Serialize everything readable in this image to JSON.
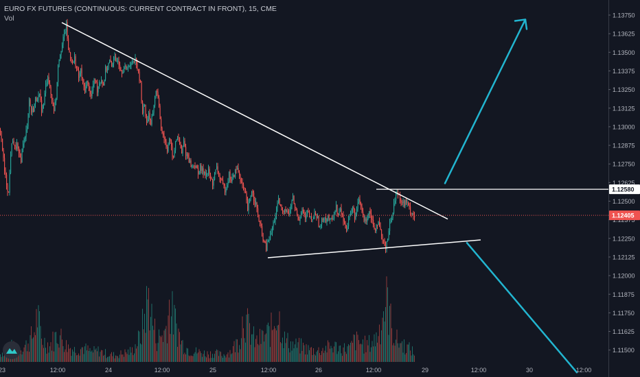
{
  "header": {
    "title": "EURO FX FUTURES (CONTINUOUS: CURRENT CONTRACT IN FRONT), 15, CME",
    "indicator": "Vol"
  },
  "colors": {
    "background": "#131722",
    "up": "#26a69a",
    "down": "#ef5350",
    "trendline": "#ffffff",
    "arrow": "#22b5d0",
    "last_price_line": "#ef5350"
  },
  "chart_data": {
    "type": "candlestick",
    "timeframe": "15",
    "ylim": [
      1.1145,
      1.1382
    ],
    "y_ticks": [
      "1.13750",
      "1.13625",
      "1.13500",
      "1.13375",
      "1.13250",
      "1.13125",
      "1.13000",
      "1.12875",
      "1.12750",
      "1.12625",
      "1.12500",
      "1.12375",
      "1.12250",
      "1.12125",
      "1.12000",
      "1.11875",
      "1.11750",
      "1.11625",
      "1.11500"
    ],
    "x_ticks": [
      "23",
      "12:00",
      "24",
      "12:00",
      "25",
      "12:00",
      "26",
      "12:00",
      "29",
      "12:00",
      "30",
      "12:00"
    ],
    "price_path": [
      [
        0,
        1.1298
      ],
      [
        3,
        1.1285
      ],
      [
        6,
        1.127
      ],
      [
        9,
        1.1262
      ],
      [
        12,
        1.1255
      ],
      [
        15,
        1.1282
      ],
      [
        18,
        1.1292
      ],
      [
        21,
        1.1285
      ],
      [
        24,
        1.1288
      ],
      [
        27,
        1.128
      ],
      [
        30,
        1.1278
      ],
      [
        33,
        1.129
      ],
      [
        36,
        1.1292
      ],
      [
        39,
        1.1302
      ],
      [
        42,
        1.1318
      ],
      [
        45,
        1.131
      ],
      [
        48,
        1.1312
      ],
      [
        51,
        1.1318
      ],
      [
        54,
        1.132
      ],
      [
        57,
        1.132
      ],
      [
        60,
        1.1312
      ],
      [
        63,
        1.1315
      ],
      [
        66,
        1.1328
      ],
      [
        69,
        1.1335
      ],
      [
        72,
        1.1325
      ],
      [
        75,
        1.1318
      ],
      [
        78,
        1.1312
      ],
      [
        81,
        1.132
      ],
      [
        84,
        1.1342
      ],
      [
        87,
        1.135
      ],
      [
        90,
        1.1355
      ],
      [
        93,
        1.1362
      ],
      [
        96,
        1.1368
      ],
      [
        99,
        1.1352
      ],
      [
        102,
        1.1348
      ],
      [
        105,
        1.1342
      ],
      [
        108,
        1.1346
      ],
      [
        111,
        1.1339
      ],
      [
        114,
        1.1333
      ],
      [
        117,
        1.1338
      ],
      [
        120,
        1.1328
      ],
      [
        123,
        1.1325
      ],
      [
        126,
        1.133
      ],
      [
        129,
        1.1326
      ],
      [
        132,
        1.132
      ],
      [
        135,
        1.1328
      ],
      [
        138,
        1.1332
      ],
      [
        141,
        1.1325
      ],
      [
        144,
        1.133
      ],
      [
        147,
        1.1332
      ],
      [
        150,
        1.1328
      ],
      [
        153,
        1.1338
      ],
      [
        156,
        1.134
      ],
      [
        159,
        1.1344
      ],
      [
        162,
        1.134
      ],
      [
        165,
        1.1348
      ],
      [
        168,
        1.1342
      ],
      [
        171,
        1.1346
      ],
      [
        174,
        1.134
      ],
      [
        177,
        1.1338
      ],
      [
        180,
        1.134
      ],
      [
        183,
        1.1338
      ],
      [
        186,
        1.1342
      ],
      [
        189,
        1.134
      ],
      [
        192,
        1.1344
      ],
      [
        195,
        1.1346
      ],
      [
        198,
        1.1344
      ],
      [
        201,
        1.1335
      ],
      [
        204,
        1.1328
      ],
      [
        207,
        1.131
      ],
      [
        210,
        1.1315
      ],
      [
        213,
        1.1302
      ],
      [
        216,
        1.131
      ],
      [
        219,
        1.13
      ],
      [
        222,
        1.131
      ],
      [
        225,
        1.132
      ],
      [
        228,
        1.1325
      ],
      [
        231,
        1.1312
      ],
      [
        234,
        1.13
      ],
      [
        237,
        1.1295
      ],
      [
        240,
        1.129
      ],
      [
        243,
        1.1285
      ],
      [
        246,
        1.1292
      ],
      [
        249,
        1.1285
      ],
      [
        252,
        1.1278
      ],
      [
        255,
        1.129
      ],
      [
        258,
        1.1294
      ],
      [
        261,
        1.1288
      ],
      [
        264,
        1.1282
      ],
      [
        267,
        1.129
      ],
      [
        270,
        1.1282
      ],
      [
        273,
        1.128
      ],
      [
        276,
        1.1276
      ],
      [
        279,
        1.1273
      ],
      [
        282,
        1.1275
      ],
      [
        285,
        1.1272
      ],
      [
        288,
        1.127
      ],
      [
        291,
        1.1272
      ],
      [
        294,
        1.127
      ],
      [
        297,
        1.127
      ],
      [
        300,
        1.1268
      ],
      [
        303,
        1.127
      ],
      [
        306,
        1.1265
      ],
      [
        309,
        1.1262
      ],
      [
        312,
        1.1268
      ],
      [
        315,
        1.1272
      ],
      [
        318,
        1.1268
      ],
      [
        321,
        1.1264
      ],
      [
        324,
        1.126
      ],
      [
        327,
        1.1258
      ],
      [
        330,
        1.1262
      ],
      [
        333,
        1.1268
      ],
      [
        336,
        1.1264
      ],
      [
        339,
        1.1266
      ],
      [
        342,
        1.127
      ],
      [
        345,
        1.1272
      ],
      [
        348,
        1.1268
      ],
      [
        351,
        1.1262
      ],
      [
        354,
        1.1258
      ],
      [
        357,
        1.1254
      ],
      [
        360,
        1.1244
      ],
      [
        363,
        1.125
      ],
      [
        366,
        1.1258
      ],
      [
        369,
        1.1252
      ],
      [
        372,
        1.1248
      ],
      [
        375,
        1.124
      ],
      [
        378,
        1.1234
      ],
      [
        381,
        1.1228
      ],
      [
        384,
        1.1222
      ],
      [
        387,
        1.1218
      ],
      [
        390,
        1.1224
      ],
      [
        393,
        1.1226
      ],
      [
        396,
        1.1232
      ],
      [
        399,
        1.1238
      ],
      [
        402,
        1.1244
      ],
      [
        405,
        1.125
      ],
      [
        408,
        1.1246
      ],
      [
        411,
        1.1242
      ],
      [
        414,
        1.1246
      ],
      [
        417,
        1.1244
      ],
      [
        420,
        1.124
      ],
      [
        423,
        1.1248
      ],
      [
        426,
        1.1252
      ],
      [
        429,
        1.1246
      ],
      [
        432,
        1.124
      ],
      [
        435,
        1.1238
      ],
      [
        438,
        1.1244
      ],
      [
        441,
        1.1242
      ],
      [
        444,
        1.1238
      ],
      [
        447,
        1.1242
      ],
      [
        450,
        1.124
      ],
      [
        453,
        1.1236
      ],
      [
        456,
        1.124
      ],
      [
        459,
        1.1242
      ],
      [
        462,
        1.1238
      ],
      [
        465,
        1.1232
      ],
      [
        468,
        1.1236
      ],
      [
        471,
        1.124
      ],
      [
        474,
        1.1238
      ],
      [
        477,
        1.124
      ],
      [
        480,
        1.1236
      ],
      [
        483,
        1.1238
      ],
      [
        486,
        1.1242
      ],
      [
        489,
        1.1246
      ],
      [
        492,
        1.124
      ],
      [
        495,
        1.1244
      ],
      [
        498,
        1.124
      ],
      [
        501,
        1.1234
      ],
      [
        504,
        1.1232
      ],
      [
        507,
        1.1238
      ],
      [
        510,
        1.1242
      ],
      [
        513,
        1.1246
      ],
      [
        516,
        1.124
      ],
      [
        519,
        1.1244
      ],
      [
        522,
        1.125
      ],
      [
        525,
        1.1246
      ],
      [
        528,
        1.124
      ],
      [
        531,
        1.1236
      ],
      [
        534,
        1.124
      ],
      [
        537,
        1.1244
      ],
      [
        540,
        1.124
      ],
      [
        543,
        1.1234
      ],
      [
        546,
        1.1232
      ],
      [
        549,
        1.1236
      ],
      [
        552,
        1.1232
      ],
      [
        555,
        1.1226
      ],
      [
        558,
        1.1222
      ],
      [
        561,
        1.122
      ],
      [
        564,
        1.1226
      ],
      [
        567,
        1.1234
      ],
      [
        570,
        1.124
      ],
      [
        573,
        1.1248
      ],
      [
        576,
        1.1254
      ],
      [
        579,
        1.1256
      ],
      [
        582,
        1.1252
      ],
      [
        585,
        1.125
      ],
      [
        588,
        1.1248
      ],
      [
        591,
        1.125
      ],
      [
        594,
        1.1246
      ],
      [
        597,
        1.1244
      ],
      [
        600,
        1.1242
      ],
      [
        603,
        1.124
      ]
    ],
    "volume_path": [
      [
        0,
        14
      ],
      [
        12,
        30
      ],
      [
        24,
        22
      ],
      [
        36,
        28
      ],
      [
        48,
        48
      ],
      [
        54,
        85
      ],
      [
        60,
        40
      ],
      [
        72,
        30
      ],
      [
        84,
        52
      ],
      [
        96,
        30
      ],
      [
        108,
        22
      ],
      [
        120,
        26
      ],
      [
        132,
        18
      ],
      [
        144,
        20
      ],
      [
        156,
        14
      ],
      [
        168,
        12
      ],
      [
        180,
        16
      ],
      [
        192,
        20
      ],
      [
        204,
        45
      ],
      [
        216,
        120
      ],
      [
        222,
        70
      ],
      [
        228,
        40
      ],
      [
        240,
        55
      ],
      [
        246,
        100
      ],
      [
        252,
        80
      ],
      [
        258,
        60
      ],
      [
        264,
        35
      ],
      [
        276,
        20
      ],
      [
        288,
        18
      ],
      [
        300,
        15
      ],
      [
        312,
        16
      ],
      [
        324,
        12
      ],
      [
        336,
        20
      ],
      [
        348,
        40
      ],
      [
        354,
        85
      ],
      [
        360,
        65
      ],
      [
        372,
        35
      ],
      [
        384,
        45
      ],
      [
        390,
        52
      ],
      [
        396,
        60
      ],
      [
        402,
        95
      ],
      [
        408,
        70
      ],
      [
        414,
        40
      ],
      [
        426,
        30
      ],
      [
        438,
        28
      ],
      [
        450,
        22
      ],
      [
        462,
        20
      ],
      [
        474,
        25
      ],
      [
        486,
        28
      ],
      [
        498,
        24
      ],
      [
        510,
        25
      ],
      [
        516,
        40
      ],
      [
        522,
        35
      ],
      [
        534,
        30
      ],
      [
        546,
        40
      ],
      [
        552,
        60
      ],
      [
        558,
        95
      ],
      [
        564,
        110
      ],
      [
        570,
        60
      ],
      [
        576,
        40
      ],
      [
        588,
        30
      ],
      [
        600,
        20
      ],
      [
        603,
        12
      ]
    ],
    "annotations": {
      "upper_trendline": [
        [
          1.137,
          90
        ],
        [
          1.1238,
          652
        ]
      ],
      "lower_trendline": [
        [
          1.1212,
          390
        ],
        [
          1.1224,
          700
        ]
      ],
      "resistance_line": [
        [
          1.1258,
          548
        ],
        [
          1.1258,
          886
        ]
      ],
      "up_arrow": [
        [
          1.1262,
          648
        ],
        [
          1.1372,
          765
        ]
      ],
      "down_arrow": [
        [
          1.1222,
          680
        ],
        [
          1.1135,
          840
        ]
      ]
    },
    "price_labels": {
      "resistance": "1.12580",
      "last": "1.12405"
    },
    "grid": false,
    "legend": "none"
  }
}
